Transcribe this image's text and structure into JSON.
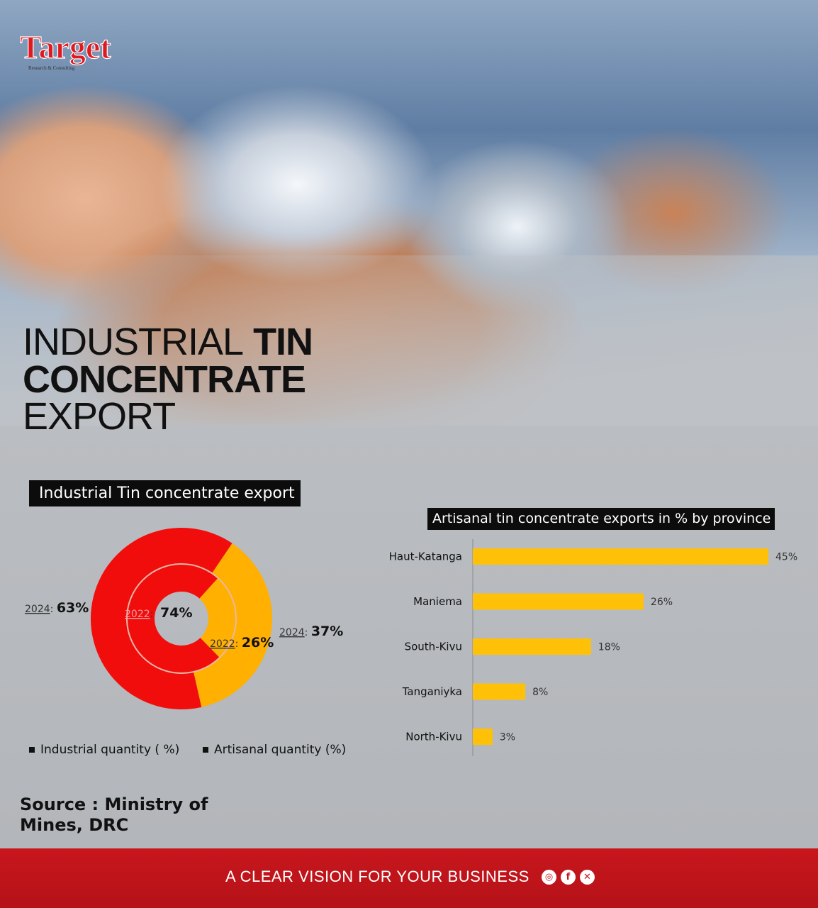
{
  "brand": {
    "logo_text": "Target",
    "logo_subtext": "Research & Consulting"
  },
  "title": {
    "line1_light": "INDUSTRIAL",
    "line1_bold": "TIN",
    "line2": "CONCENTRATE",
    "line3": "EXPORT"
  },
  "colors": {
    "red": "#f20d0d",
    "orange": "#ffb000",
    "yellow": "#ffc107",
    "footer_red": "#c8161d"
  },
  "chart_data": [
    {
      "type": "pie",
      "title": "Industrial Tin concentrate export",
      "rings": [
        {
          "year": "2022",
          "slices": [
            {
              "name": "Industrial quantity ( %)",
              "value": 74,
              "label": "74%",
              "year_label": "2022"
            },
            {
              "name": "Artisanal quantity (%)",
              "value": 26,
              "label": "26%",
              "year_label": "2022"
            }
          ]
        },
        {
          "year": "2024",
          "slices": [
            {
              "name": "Industrial quantity ( %)",
              "value": 63,
              "label": "63%",
              "year_label": "2024"
            },
            {
              "name": "Artisanal quantity (%)",
              "value": 37,
              "label": "37%",
              "year_label": "2024"
            }
          ]
        }
      ],
      "legend": [
        "Industrial quantity ( %)",
        "Artisanal quantity (%)"
      ],
      "legend_position": "bottom"
    },
    {
      "type": "bar",
      "orientation": "horizontal",
      "title": "Artisanal tin concentrate exports in % by province",
      "categories": [
        "Haut-Katanga",
        "Maniema",
        "South-Kivu",
        "Tanganiyka",
        "North-Kivu"
      ],
      "values": [
        45,
        26,
        18,
        8,
        3
      ],
      "value_labels": [
        "45%",
        "26%",
        "18%",
        "8%",
        "3%"
      ],
      "xlim": [
        0,
        45
      ],
      "grid": false
    }
  ],
  "source": "Source : Ministry of Mines, DRC",
  "footer": {
    "tagline": "A CLEAR VISION FOR YOUR BUSINESS",
    "social": [
      "instagram-icon",
      "facebook-icon",
      "x-icon"
    ]
  }
}
